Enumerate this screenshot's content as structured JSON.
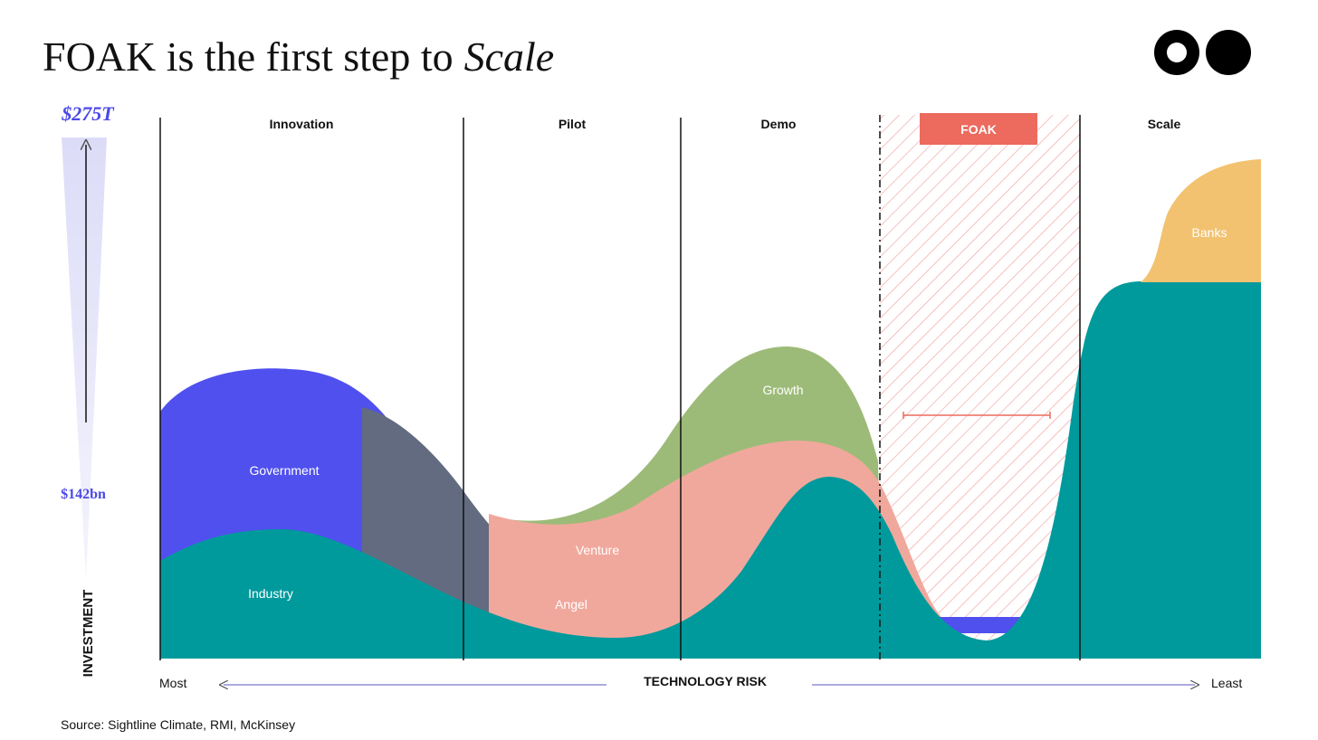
{
  "header": {
    "title": "FOAK is the first step to",
    "title_emphasis": "Scale"
  },
  "stages": [
    "Innovation",
    "Pilot",
    "Demo",
    "FOAK",
    "Scale"
  ],
  "areas": [
    "Government",
    "Industry",
    "Angel",
    "Venture",
    "Growth",
    "Banks"
  ],
  "y_axis": {
    "top": "$275T",
    "middle": "$142bn",
    "label": "INVESTMENT"
  },
  "x_axis": {
    "left": "Most",
    "label": "TECHNOLOGY RISK",
    "right": "Least"
  },
  "source": "Source: Sightline Climate, RMI, McKinsey"
}
